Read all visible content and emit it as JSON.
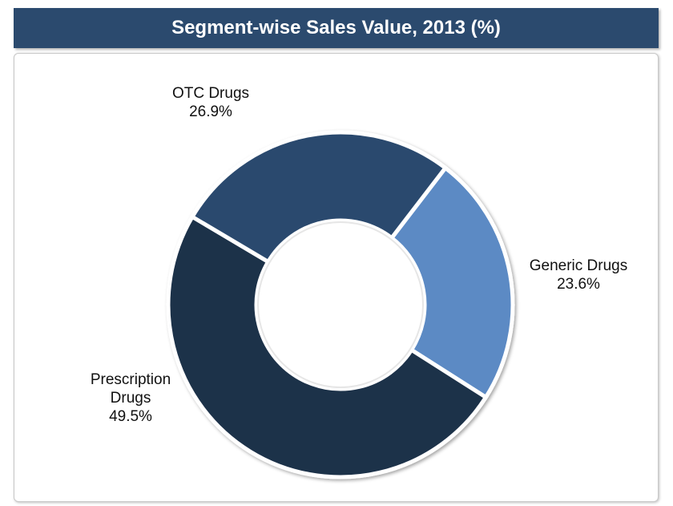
{
  "chart_data": {
    "type": "donut",
    "title": "Segment-wise Sales Value, 2013 (%)",
    "categories": [
      "Generic Drugs",
      "Prescription Drugs",
      "OTC Drugs"
    ],
    "values": [
      23.6,
      49.5,
      26.9
    ],
    "value_labels": [
      "23.6%",
      "49.5%",
      "26.9%"
    ],
    "colors": [
      "#5b8ac4",
      "#1e304a",
      "#2b4a6e"
    ]
  }
}
